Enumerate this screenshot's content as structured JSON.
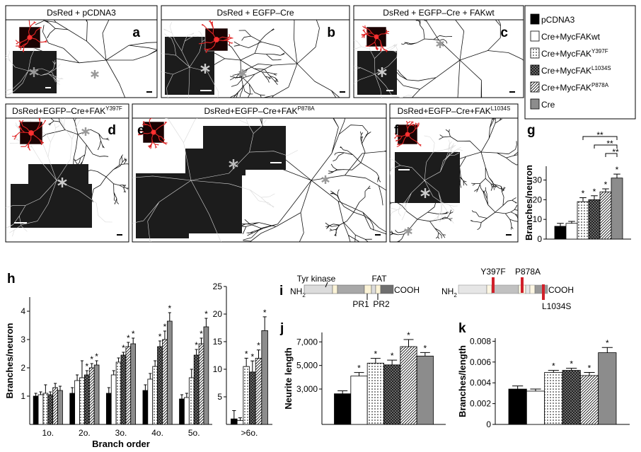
{
  "image_panels": [
    {
      "title": "DsRed + pCDNA3",
      "letter": "a"
    },
    {
      "title": "DsRed + EGFP–Cre",
      "letter": "b"
    },
    {
      "title": "DsRed + EGFP–Cre + FAKwt",
      "letter": "c"
    },
    {
      "title": "DsRed+EGFP–Cre+FAK",
      "title_superscript": "Y397F",
      "letter": "d"
    },
    {
      "title": "DsRed+EGFP–Cre+FAK",
      "title_superscript": "P878A",
      "letter": "e"
    },
    {
      "title": "DsRed+EGFP–Cre+FAK",
      "title_superscript": "L1034S",
      "letter": "f"
    }
  ],
  "legend": [
    {
      "name": "pCDNA3",
      "color": "#000000"
    },
    {
      "name": "Cre+MycFAKwt",
      "color": "#ffffff"
    },
    {
      "name": "Cre+MycFAK",
      "superscript": "Y397F",
      "color": "#ffffff",
      "pattern": "dots"
    },
    {
      "name": "Cre+MycFAK",
      "superscript": "L1034S",
      "color": "#6a6a6a",
      "pattern": "checker"
    },
    {
      "name": "Cre+MycFAK",
      "superscript": "P878A",
      "color": "#ffffff",
      "pattern": "hatch"
    },
    {
      "name": "Cre",
      "color": "#8c8c8c"
    }
  ],
  "domain_diagram": {
    "letter": "i",
    "left": {
      "n_term": "NH",
      "n_sub": "2",
      "c_term": "COOH",
      "labels_above": [
        "Tyr kinase",
        "FAT"
      ],
      "labels_below": [
        "PR1",
        "PR2"
      ]
    },
    "right": {
      "n_term": "NH",
      "n_sub": "2",
      "c_term": "COOH",
      "mutations": [
        "Y397F",
        "P878A",
        "L1034S"
      ]
    }
  },
  "chart_data": [
    {
      "type": "bar",
      "letter": "g",
      "ylabel": "Branches/neuron",
      "categories": [
        null
      ],
      "ylim": [
        0,
        37
      ],
      "yticks": [
        0,
        10,
        20,
        30
      ],
      "star_label": "*",
      "series": [
        {
          "values": [
            6.5
          ],
          "errors": [
            1.5
          ],
          "stars": [
            false
          ]
        },
        {
          "values": [
            8
          ],
          "errors": [
            1
          ],
          "stars": [
            false
          ]
        },
        {
          "values": [
            19
          ],
          "errors": [
            2
          ],
          "stars": [
            true
          ]
        },
        {
          "values": [
            20
          ],
          "errors": [
            2
          ],
          "stars": [
            true
          ]
        },
        {
          "values": [
            24
          ],
          "errors": [
            1.5
          ],
          "stars": [
            true
          ]
        },
        {
          "values": [
            31
          ],
          "errors": [
            2
          ],
          "stars": [
            true
          ]
        }
      ],
      "brackets": [
        {
          "from": 2,
          "to": 5,
          "label": "**"
        },
        {
          "from": 3,
          "to": 5,
          "label": "**"
        },
        {
          "from": 4,
          "to": 5,
          "label": "**"
        }
      ]
    },
    {
      "type": "bar",
      "letter": "h",
      "ylabel": "Branches/neuron",
      "xlabel": "Branch order",
      "categories": [
        "1o.",
        "2o.",
        "3o.",
        "4o.",
        "5o."
      ],
      "ylim": [
        0,
        4.5
      ],
      "yticks": [
        1,
        2,
        3,
        4
      ],
      "star_label": "*",
      "series": [
        {
          "values": [
            1.0,
            1.1,
            1.1,
            1.2,
            0.9
          ],
          "errors": [
            0.1,
            0.2,
            0.2,
            0.2,
            0.15
          ],
          "stars": [
            false,
            false,
            false,
            false,
            false
          ]
        },
        {
          "values": [
            1.05,
            1.55,
            1.75,
            1.6,
            0.95
          ],
          "errors": [
            0.1,
            0.2,
            0.15,
            0.2,
            0.15
          ],
          "stars": [
            false,
            false,
            false,
            false,
            false
          ]
        },
        {
          "values": [
            1.1,
            1.65,
            2.2,
            2.05,
            1.65
          ],
          "errors": [
            0.3,
            0.6,
            0.15,
            0.2,
            0.3
          ],
          "stars": [
            false,
            false,
            false,
            false,
            false
          ]
        },
        {
          "values": [
            1.05,
            1.75,
            2.45,
            2.75,
            2.45
          ],
          "errors": [
            0.1,
            0.15,
            0.1,
            0.2,
            0.2
          ],
          "stars": [
            false,
            true,
            true,
            true,
            true
          ]
        },
        {
          "values": [
            1.3,
            2.0,
            2.75,
            3.0,
            2.85
          ],
          "errors": [
            0.15,
            0.15,
            0.15,
            0.3,
            0.2
          ],
          "stars": [
            false,
            true,
            true,
            true,
            true
          ]
        },
        {
          "values": [
            1.2,
            2.1,
            2.85,
            3.65,
            3.45
          ],
          "errors": [
            0.15,
            0.15,
            0.2,
            0.3,
            0.3
          ],
          "stars": [
            false,
            true,
            true,
            true,
            true
          ]
        }
      ]
    },
    {
      "type": "bar",
      "categories": [
        ">6o."
      ],
      "ylim": [
        0,
        25
      ],
      "yticks": [
        5,
        10,
        15,
        20,
        25
      ],
      "star_label": "*",
      "series": [
        {
          "values": [
            1
          ],
          "errors": [
            1.5
          ],
          "stars": [
            false
          ]
        },
        {
          "values": [
            0.7
          ],
          "errors": [
            0.5
          ],
          "stars": [
            false
          ]
        },
        {
          "values": [
            10.5
          ],
          "errors": [
            1.5
          ],
          "stars": [
            true
          ]
        },
        {
          "values": [
            9.5
          ],
          "errors": [
            2
          ],
          "stars": [
            true
          ]
        },
        {
          "values": [
            12
          ],
          "errors": [
            1.5
          ],
          "stars": [
            true
          ]
        },
        {
          "values": [
            17
          ],
          "errors": [
            2.5
          ],
          "stars": [
            true
          ]
        }
      ]
    },
    {
      "type": "bar",
      "letter": "j",
      "ylabel": "Neurite length",
      "categories": [
        null
      ],
      "ylim": [
        0,
        7800
      ],
      "yticks": [
        {
          "value": 3000,
          "label": "3,000"
        },
        {
          "value": 5000,
          "label": "5,000"
        },
        {
          "value": 7000,
          "label": "7,000"
        }
      ],
      "star_label": "*",
      "series": [
        {
          "values": [
            2600
          ],
          "errors": [
            250
          ],
          "stars": [
            false
          ]
        },
        {
          "values": [
            4100
          ],
          "errors": [
            300
          ],
          "stars": [
            true
          ]
        },
        {
          "values": [
            5200
          ],
          "errors": [
            400
          ],
          "stars": [
            true
          ]
        },
        {
          "values": [
            5050
          ],
          "errors": [
            400
          ],
          "stars": [
            true
          ]
        },
        {
          "values": [
            6600
          ],
          "errors": [
            600
          ],
          "stars": [
            true
          ]
        },
        {
          "values": [
            5800
          ],
          "errors": [
            300
          ],
          "stars": [
            true
          ]
        }
      ]
    },
    {
      "type": "bar",
      "letter": "k",
      "ylabel": "Branches/length",
      "categories": [
        null
      ],
      "ylim": [
        0,
        0.0083
      ],
      "yticks": [
        0,
        0.002,
        0.004,
        0.006,
        0.008
      ],
      "star_label": "*",
      "series": [
        {
          "values": [
            0.0034
          ],
          "errors": [
            0.0003
          ],
          "stars": [
            false
          ]
        },
        {
          "values": [
            0.0032
          ],
          "errors": [
            0.0002
          ],
          "stars": [
            false
          ]
        },
        {
          "values": [
            0.005
          ],
          "errors": [
            0.0002
          ],
          "stars": [
            true
          ]
        },
        {
          "values": [
            0.0052
          ],
          "errors": [
            0.0002
          ],
          "stars": [
            true
          ]
        },
        {
          "values": [
            0.0047
          ],
          "errors": [
            0.0003
          ],
          "stars": [
            true
          ]
        },
        {
          "values": [
            0.0069
          ],
          "errors": [
            0.0005
          ],
          "stars": [
            true
          ]
        }
      ]
    }
  ]
}
